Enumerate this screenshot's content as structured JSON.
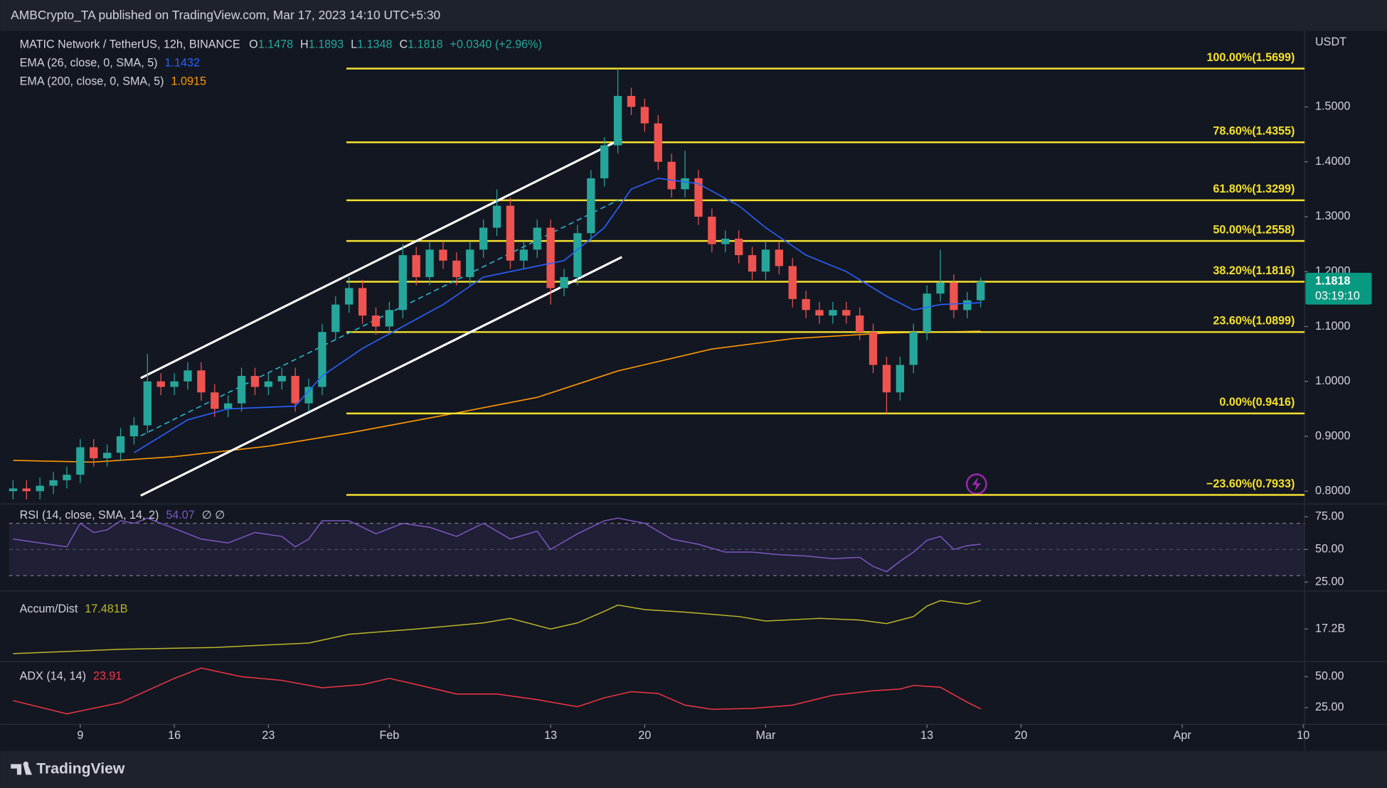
{
  "header": {
    "publisher": "AMBCrypto_TA published on TradingView.com, Mar 17, 2023 14:10 UTC+5:30"
  },
  "footer": {
    "brand": "TradingView"
  },
  "chart_data": [
    {
      "type": "candlestick",
      "title": "MATIC Network / TetherUS, 12h, BINANCE",
      "ohlc_labels": [
        "O",
        "H",
        "L",
        "C"
      ],
      "change": "+0.0340 (+2.96%)",
      "axis_unit": "USDT",
      "countdown": "03:19:10",
      "up_color": "#26a69a",
      "down_color": "#ef5350",
      "open": [
        0.8,
        0.805,
        0.8,
        0.81,
        0.82,
        0.83,
        0.88,
        0.86,
        0.87,
        0.9,
        0.92,
        1.0,
        0.99,
        1.0,
        1.02,
        0.98,
        0.95,
        0.96,
        1.01,
        0.99,
        1.0,
        1.01,
        0.96,
        0.99,
        1.09,
        1.14,
        1.17,
        1.12,
        1.1,
        1.13,
        1.23,
        1.19,
        1.24,
        1.22,
        1.19,
        1.24,
        1.28,
        1.32,
        1.22,
        1.24,
        1.28,
        1.17,
        1.19,
        1.27,
        1.37,
        1.43,
        1.52,
        1.5,
        1.47,
        1.4,
        1.35,
        1.37,
        1.3,
        1.25,
        1.26,
        1.23,
        1.2,
        1.24,
        1.21,
        1.15,
        1.13,
        1.12,
        1.13,
        1.12,
        1.09,
        1.03,
        0.98,
        1.03,
        1.09,
        1.16,
        1.18,
        1.13,
        1.1478
      ],
      "high": [
        0.82,
        0.82,
        0.825,
        0.835,
        0.845,
        0.895,
        0.895,
        0.885,
        0.915,
        0.935,
        1.05,
        1.015,
        1.015,
        1.035,
        1.035,
        0.995,
        0.975,
        1.025,
        1.025,
        1.015,
        1.025,
        1.025,
        1.005,
        1.105,
        1.155,
        1.19,
        1.185,
        1.135,
        1.145,
        1.25,
        1.245,
        1.255,
        1.255,
        1.235,
        1.255,
        1.295,
        1.35,
        1.335,
        1.255,
        1.295,
        1.295,
        1.205,
        1.285,
        1.385,
        1.445,
        1.5699,
        1.535,
        1.515,
        1.485,
        1.415,
        1.42,
        1.385,
        1.315,
        1.275,
        1.275,
        1.245,
        1.255,
        1.255,
        1.225,
        1.165,
        1.145,
        1.145,
        1.145,
        1.135,
        1.105,
        1.045,
        1.045,
        1.105,
        1.175,
        1.24,
        1.195,
        1.1628,
        1.1893
      ],
      "low": [
        0.785,
        0.785,
        0.785,
        0.795,
        0.805,
        0.815,
        0.845,
        0.845,
        0.855,
        0.885,
        0.905,
        0.975,
        0.975,
        0.985,
        0.965,
        0.935,
        0.935,
        0.945,
        0.975,
        0.975,
        0.985,
        0.945,
        0.945,
        0.975,
        1.075,
        1.125,
        1.105,
        1.085,
        1.085,
        1.115,
        1.175,
        1.175,
        1.205,
        1.175,
        1.175,
        1.225,
        1.265,
        1.205,
        1.205,
        1.225,
        1.14,
        1.155,
        1.175,
        1.255,
        1.355,
        1.415,
        1.485,
        1.455,
        1.385,
        1.335,
        1.335,
        1.285,
        1.235,
        1.235,
        1.215,
        1.185,
        1.185,
        1.195,
        1.135,
        1.115,
        1.105,
        1.105,
        1.105,
        1.075,
        1.015,
        0.9416,
        0.965,
        1.015,
        1.075,
        1.145,
        1.115,
        1.115,
        1.1348
      ],
      "close": [
        0.805,
        0.8,
        0.81,
        0.82,
        0.83,
        0.88,
        0.86,
        0.87,
        0.9,
        0.92,
        1.0,
        0.99,
        1.0,
        1.02,
        0.98,
        0.95,
        0.96,
        1.01,
        0.99,
        1.0,
        1.01,
        0.96,
        0.99,
        1.09,
        1.14,
        1.17,
        1.12,
        1.1,
        1.13,
        1.23,
        1.19,
        1.24,
        1.22,
        1.19,
        1.24,
        1.28,
        1.32,
        1.22,
        1.24,
        1.28,
        1.17,
        1.19,
        1.27,
        1.37,
        1.43,
        1.52,
        1.5,
        1.47,
        1.4,
        1.35,
        1.37,
        1.3,
        1.25,
        1.26,
        1.23,
        1.2,
        1.24,
        1.21,
        1.15,
        1.13,
        1.12,
        1.13,
        1.12,
        1.09,
        1.03,
        0.98,
        1.03,
        1.09,
        1.16,
        1.18,
        1.13,
        1.1478,
        1.1818
      ],
      "series": [
        {
          "name": "EMA (26, close, 0, SMA, 5)",
          "color": "#2962ff",
          "x": [
            9,
            13,
            16,
            21,
            23,
            26,
            29,
            32,
            35,
            39,
            41,
            44,
            46,
            48,
            51,
            54,
            56,
            59,
            62,
            65,
            67,
            69,
            72
          ],
          "values": [
            0.87,
            0.93,
            0.95,
            0.955,
            1.01,
            1.06,
            1.1,
            1.14,
            1.19,
            1.21,
            1.22,
            1.28,
            1.35,
            1.37,
            1.36,
            1.32,
            1.28,
            1.23,
            1.2,
            1.155,
            1.13,
            1.14,
            1.1432
          ]
        },
        {
          "name": "EMA (200, close, 0, SMA, 5)",
          "color": "#ff9800",
          "x": [
            0,
            6,
            12,
            19,
            25,
            32,
            39,
            45,
            52,
            58,
            65,
            72
          ],
          "values": [
            0.856,
            0.853,
            0.863,
            0.882,
            0.906,
            0.938,
            0.971,
            1.019,
            1.059,
            1.078,
            1.088,
            1.0915
          ]
        }
      ],
      "fib_levels": {
        "color": "#f5e12d",
        "start_x": 24.8,
        "levels": [
          {
            "value": 1.5699,
            "label": "100.00%(1.5699)"
          },
          {
            "value": 1.4355,
            "label": "78.60%(1.4355)"
          },
          {
            "value": 1.3299,
            "label": "61.80%(1.3299)"
          },
          {
            "value": 1.2558,
            "label": "50.00%(1.2558)"
          },
          {
            "value": 1.1816,
            "label": "38.20%(1.1816)"
          },
          {
            "value": 1.0899,
            "label": "23.60%(1.0899)"
          },
          {
            "value": 0.9416,
            "label": "0.00%(0.9416)"
          },
          {
            "value": 0.7933,
            "label": "−23.60%(0.7933)"
          }
        ]
      },
      "trend_lines": [
        {
          "x": [
            9.5,
            45.3
          ],
          "values": [
            1.006,
            1.442
          ],
          "color": "#ffffff"
        },
        {
          "x": [
            9.5,
            45.3
          ],
          "values": [
            0.792,
            1.2265
          ],
          "color": "#ffffff"
        },
        {
          "x": [
            9.5,
            45.1
          ],
          "values": [
            0.901,
            1.331
          ],
          "color": "#26c6da",
          "dashed": true
        }
      ],
      "xlim": [
        -0.3,
        96.1
      ],
      "xticks": [
        {
          "value": 5,
          "label": "9"
        },
        {
          "value": 12,
          "label": "16"
        },
        {
          "value": 19,
          "label": "23"
        },
        {
          "value": 28,
          "label": "Feb"
        },
        {
          "value": 40,
          "label": "13"
        },
        {
          "value": 47,
          "label": "20"
        },
        {
          "value": 56,
          "label": "Mar"
        },
        {
          "value": 68,
          "label": "13"
        },
        {
          "value": 75,
          "label": "20"
        },
        {
          "value": 87,
          "label": "Apr"
        },
        {
          "value": 96,
          "label": "10"
        }
      ],
      "ylim": [
        0.7775,
        1.6336
      ],
      "yticks": [
        {
          "value": 0.8,
          "label": "0.8000"
        },
        {
          "value": 0.9,
          "label": "0.9000"
        },
        {
          "value": 1.0,
          "label": "1.0000"
        },
        {
          "value": 1.1,
          "label": "1.1000"
        },
        {
          "value": 1.2,
          "label": "1.2000"
        },
        {
          "value": 1.3,
          "label": "1.3000"
        },
        {
          "value": 1.4,
          "label": "1.4000"
        },
        {
          "value": 1.5,
          "label": "1.5000"
        }
      ]
    },
    {
      "type": "line",
      "title": "RSI (14, close, SMA, 14, 2)",
      "flags": "∅ ∅",
      "color": "#7e57c2",
      "band": [
        30,
        70
      ],
      "midline": 50,
      "x": [
        0,
        2,
        4,
        5,
        6,
        7,
        8,
        9,
        10,
        12,
        14,
        16,
        18,
        20,
        21,
        22,
        23,
        25,
        27,
        29,
        31,
        33,
        35,
        37,
        39,
        40,
        42,
        44,
        45,
        47,
        49,
        51,
        53,
        55,
        57,
        59,
        61,
        63,
        64,
        65,
        66,
        67,
        68,
        69,
        70,
        71,
        72
      ],
      "values": [
        58,
        55,
        52,
        70,
        63,
        65,
        72,
        70,
        74,
        66,
        58,
        55,
        63,
        60,
        52,
        58,
        72,
        72,
        62,
        70,
        67,
        60,
        70,
        58,
        64,
        50,
        62,
        72,
        74,
        70,
        58,
        54,
        48,
        48,
        46,
        45,
        43,
        44,
        37,
        33,
        41,
        48,
        57,
        60,
        50,
        53,
        54.07
      ],
      "ylim": [
        18.9,
        83.8
      ],
      "yticks": [
        {
          "value": 25,
          "label": "25.00"
        },
        {
          "value": 50,
          "label": "50.00"
        },
        {
          "value": 75,
          "label": "75.00"
        }
      ]
    },
    {
      "type": "line",
      "title": "Accum/Dist",
      "color": "#bdb72a",
      "x": [
        0,
        8,
        15,
        22,
        25,
        30,
        35,
        37,
        40,
        42,
        44,
        45,
        47,
        50,
        54,
        56,
        60,
        63,
        65,
        67,
        68,
        69,
        71,
        72
      ],
      "values": [
        16.955,
        16.998,
        17.016,
        17.06,
        17.147,
        17.2,
        17.26,
        17.305,
        17.2,
        17.26,
        17.375,
        17.437,
        17.393,
        17.367,
        17.323,
        17.279,
        17.305,
        17.288,
        17.253,
        17.323,
        17.428,
        17.481,
        17.446,
        17.481
      ],
      "value_labels": [
        null,
        null,
        null,
        null,
        null,
        null,
        null,
        null,
        null,
        null,
        null,
        null,
        null,
        null,
        null,
        null,
        null,
        null,
        null,
        null,
        null,
        null,
        null,
        "17.481B"
      ],
      "ylim": [
        16.884,
        17.568
      ],
      "yticks": [
        {
          "value": 17.2,
          "label": "17.2B"
        }
      ]
    },
    {
      "type": "line",
      "title": "ADX (14, 14)",
      "color": "#f23645",
      "x": [
        0,
        4,
        8,
        12,
        14,
        17,
        20,
        23,
        26,
        28,
        30,
        33,
        36,
        39,
        42,
        44,
        46,
        48,
        50,
        52,
        55,
        58,
        61,
        64,
        66,
        67,
        69,
        71,
        72
      ],
      "values": [
        30.7,
        20,
        29,
        48.6,
        57,
        50,
        47,
        41,
        43.6,
        48.6,
        43.6,
        36,
        36,
        31.4,
        25.7,
        32.9,
        37.9,
        36.4,
        27,
        23.6,
        24.3,
        27,
        35,
        38.6,
        40,
        42.9,
        41.4,
        29.3,
        23.91
      ],
      "ylim": [
        11.4,
        61.4
      ],
      "yticks": [
        {
          "value": 25,
          "label": "25.00"
        },
        {
          "value": 50,
          "label": "50.00"
        }
      ]
    }
  ]
}
